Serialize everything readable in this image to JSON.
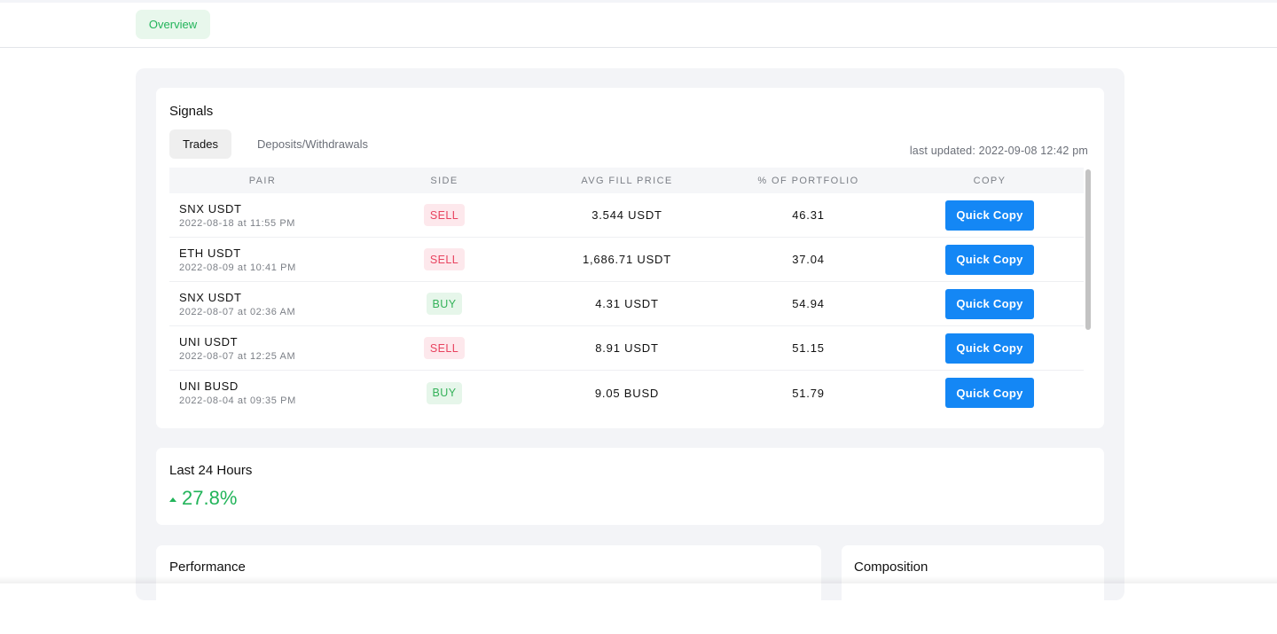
{
  "nav": {
    "overview_label": "Overview"
  },
  "signals": {
    "title": "Signals",
    "tabs": [
      "Trades",
      "Deposits/Withdrawals"
    ],
    "last_updated": "last updated: 2022-09-08 12:42 pm",
    "columns": [
      "PAIR",
      "SIDE",
      "AVG FILL PRICE",
      "% OF PORTFOLIO",
      "COPY"
    ],
    "rows": [
      {
        "pair": "SNX USDT",
        "time": "2022-08-18 at 11:55 PM",
        "side": "SELL",
        "avg": "3.544 USDT",
        "pct": "46.31",
        "copy": "Quick Copy"
      },
      {
        "pair": "ETH USDT",
        "time": "2022-08-09 at 10:41 PM",
        "side": "SELL",
        "avg": "1,686.71 USDT",
        "pct": "37.04",
        "copy": "Quick Copy"
      },
      {
        "pair": "SNX USDT",
        "time": "2022-08-07 at 02:36 AM",
        "side": "BUY",
        "avg": "4.31 USDT",
        "pct": "54.94",
        "copy": "Quick Copy"
      },
      {
        "pair": "UNI USDT",
        "time": "2022-08-07 at 12:25 AM",
        "side": "SELL",
        "avg": "8.91 USDT",
        "pct": "51.15",
        "copy": "Quick Copy"
      },
      {
        "pair": "UNI BUSD",
        "time": "2022-08-04 at 09:35 PM",
        "side": "BUY",
        "avg": "9.05 BUSD",
        "pct": "51.79",
        "copy": "Quick Copy"
      }
    ]
  },
  "last24": {
    "title": "Last 24 Hours",
    "change": "27.8%",
    "direction_icon": "caret-up-icon"
  },
  "performance": {
    "title": "Performance"
  },
  "composition": {
    "title": "Composition"
  },
  "colors": {
    "accent_green": "#22b45a",
    "button_blue": "#1487f5",
    "sell_red": "#e8435f"
  }
}
